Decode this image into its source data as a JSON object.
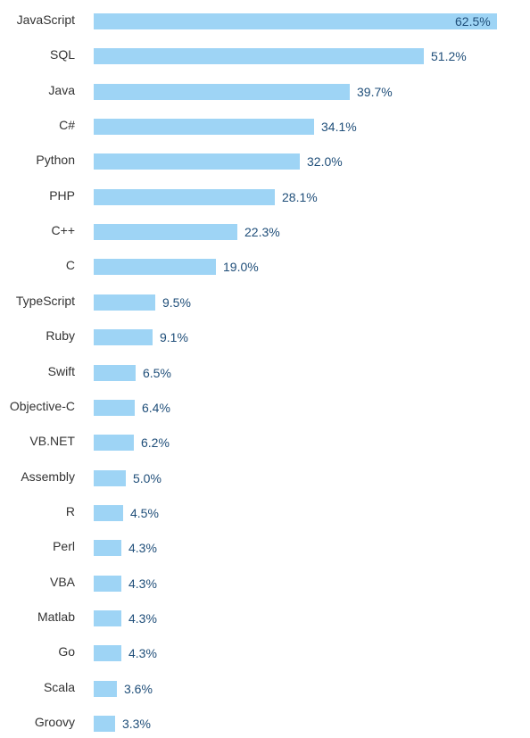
{
  "chart_data": {
    "type": "bar",
    "orientation": "horizontal",
    "categories": [
      "JavaScript",
      "SQL",
      "Java",
      "C#",
      "Python",
      "PHP",
      "C++",
      "C",
      "TypeScript",
      "Ruby",
      "Swift",
      "Objective-C",
      "VB.NET",
      "Assembly",
      "R",
      "Perl",
      "VBA",
      "Matlab",
      "Go",
      "Scala",
      "Groovy"
    ],
    "values": [
      62.5,
      51.2,
      39.7,
      34.1,
      32.0,
      28.1,
      22.3,
      19.0,
      9.5,
      9.1,
      6.5,
      6.4,
      6.2,
      5.0,
      4.5,
      4.3,
      4.3,
      4.3,
      4.3,
      3.6,
      3.3
    ],
    "value_labels": [
      "62.5%",
      "51.2%",
      "39.7%",
      "34.1%",
      "32.0%",
      "28.1%",
      "22.3%",
      "19.0%",
      "9.5%",
      "9.1%",
      "6.5%",
      "6.4%",
      "6.2%",
      "5.0%",
      "4.5%",
      "4.3%",
      "4.3%",
      "4.3%",
      "4.3%",
      "3.6%",
      "3.3%"
    ],
    "title": "",
    "xlabel": "",
    "ylabel": "",
    "xlim": [
      0,
      62.5
    ],
    "grid": false,
    "legend": "none",
    "colors": {
      "bar": "#9ed4f5",
      "category_label": "#333333",
      "value_label": "#1f4e79"
    }
  }
}
